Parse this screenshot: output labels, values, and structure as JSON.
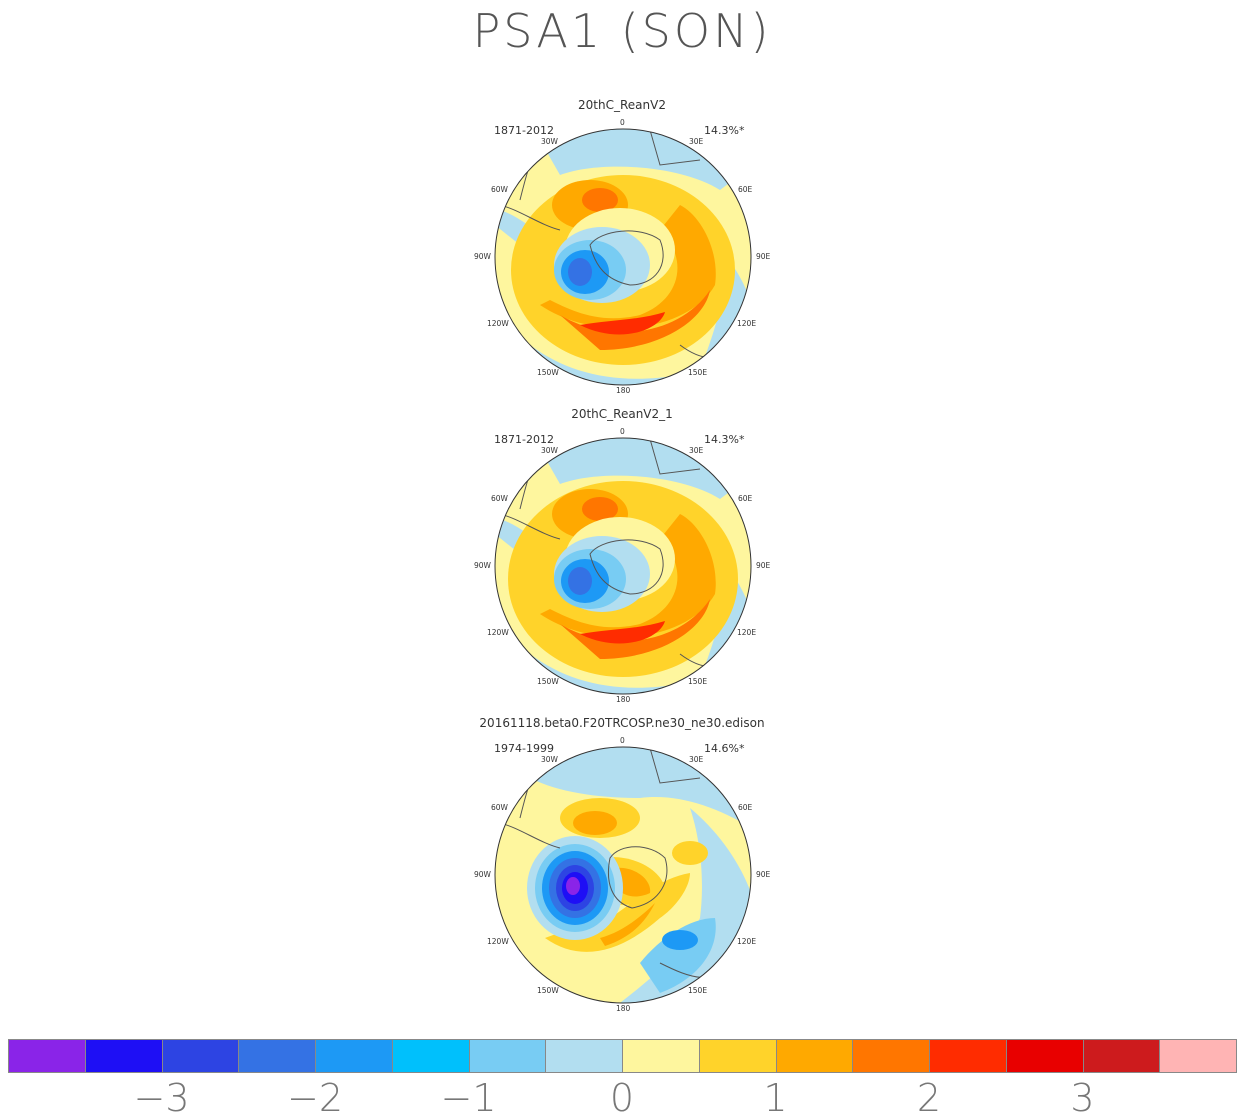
{
  "title": "PSA1 (SON)",
  "panels": [
    {
      "name": "20thC_ReanV2",
      "years": "1871-2012",
      "pct": "14.3%*"
    },
    {
      "name": "20thC_ReanV2_1",
      "years": "1871-2012",
      "pct": "14.3%*"
    },
    {
      "name": "20161118.beta0.F20TRCOSP.ne30_ne30.edison",
      "years": "1974-1999",
      "pct": "14.6%*"
    }
  ],
  "lon_labels": {
    "top": "0",
    "bottom": "180",
    "tl": "30W",
    "tr": "30E",
    "ul": "60W",
    "ur": "60E",
    "ml": "90W",
    "mr": "90E",
    "ll": "120W",
    "lr": "120E",
    "bl": "150W",
    "br": "150E"
  },
  "colorbar": {
    "colors": [
      "#8a24e8",
      "#1e0ff5",
      "#2d44e3",
      "#3472e4",
      "#1d99f5",
      "#00c0fc",
      "#78ccf3",
      "#b2def0",
      "#fef69e",
      "#ffd32a",
      "#ffa900",
      "#ff7600",
      "#ff2c00",
      "#e80000",
      "#cd1b1d",
      "#ffb4b4"
    ],
    "labels": [
      "-3",
      "-2",
      "-1",
      "0",
      "1",
      "2",
      "3"
    ]
  }
}
